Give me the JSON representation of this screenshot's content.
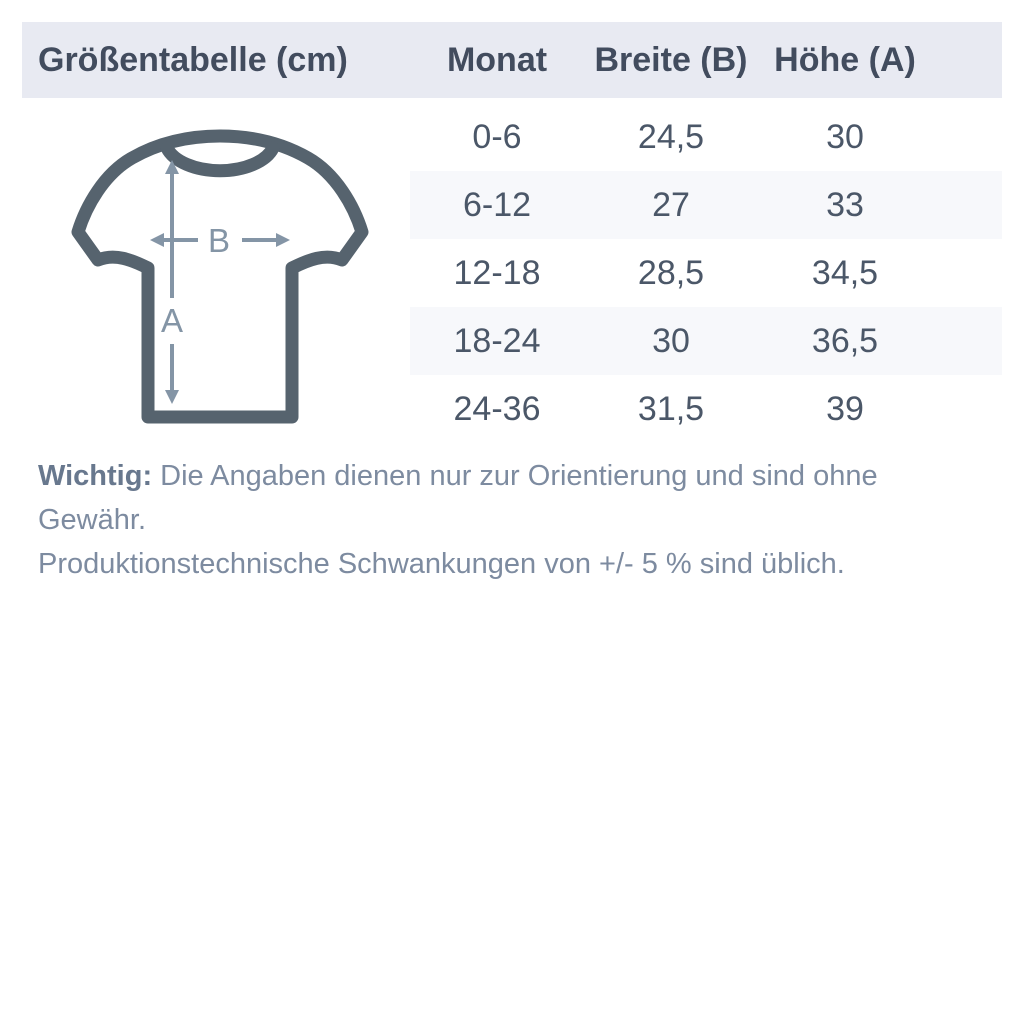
{
  "chart_data": {
    "type": "table",
    "title": "Größentabelle (cm)",
    "columns": [
      "Monat",
      "Breite (B)",
      "Höhe (A)"
    ],
    "rows": [
      [
        "0-6",
        "24,5",
        "30"
      ],
      [
        "6-12",
        "27",
        "33"
      ],
      [
        "12-18",
        "28,5",
        "34,5"
      ],
      [
        "18-24",
        "30",
        "36,5"
      ],
      [
        "24-36",
        "31,5",
        "39"
      ]
    ],
    "layout_hints": {
      "striped_rows": [
        1,
        3
      ],
      "header_background": "#e8eaf2",
      "stripe_background": "#f7f8fb"
    }
  },
  "diagram": {
    "width_label": "B",
    "height_label": "A",
    "outline_color": "#56636e",
    "arrow_color": "#8495a6"
  },
  "note": {
    "label": "Wichtig:",
    "line1": " Die Angaben dienen nur zur Orientierung und sind ohne Gewähr.",
    "line2": "Produktionstechnische Schwankungen von +/- 5 % sind üblich."
  },
  "colors": {
    "page_background": "#ffffff",
    "heading_text": "#424c5e",
    "cell_text": "#4b5768",
    "note_text": "#7d8ba0"
  }
}
